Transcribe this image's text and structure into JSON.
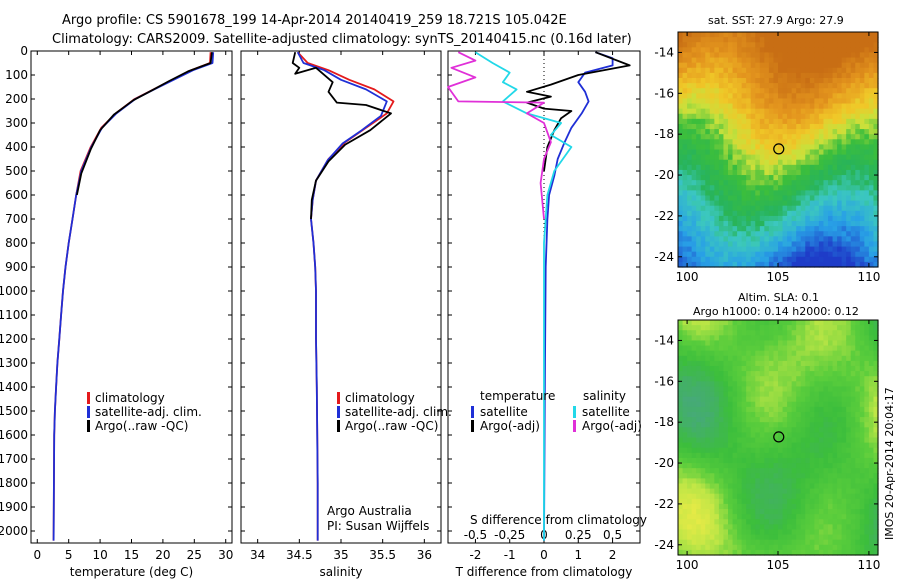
{
  "header": {
    "line1": "Argo profile: CS 5901678_199 14-Apr-2014 20140419_259 18.721S 105.042E",
    "line2": "Climatology: CARS2009. Satellite-adjusted climatology: synTS_20140415.nc (0.16d later)"
  },
  "colors": {
    "climatology": "#e41a1c",
    "satellite": "#1f2fd6",
    "argo": "#000000",
    "salinity_sat": "#22d8e8",
    "salinity_argo": "#e030d8"
  },
  "chart_data": [
    {
      "type": "line",
      "id": "temperature",
      "xlabel": "temperature (deg C)",
      "ylabel": "",
      "xlim": [
        -1,
        31
      ],
      "ylim": [
        2050,
        0
      ],
      "xticks": [
        0,
        5,
        10,
        15,
        20,
        25,
        30
      ],
      "yticks": [
        0,
        100,
        200,
        300,
        400,
        500,
        600,
        700,
        800,
        900,
        1000,
        1100,
        1200,
        1300,
        1400,
        1500,
        1600,
        1700,
        1800,
        1900,
        2000
      ],
      "legend": [
        "climatology",
        "satellite-adj. clim.",
        "Argo(..raw -QC)"
      ],
      "series": [
        {
          "name": "climatology",
          "color": "#e41a1c",
          "x": [
            27.6,
            27.5,
            24.5,
            21.5,
            18.5,
            15.5,
            12.5,
            10.2,
            8.5,
            6.9,
            6.2,
            5.6,
            5.0,
            4.5,
            4.1,
            3.8,
            3.5,
            3.2,
            3.0,
            2.8,
            2.7,
            2.6
          ],
          "y": [
            5,
            50,
            80,
            120,
            160,
            200,
            260,
            320,
            400,
            500,
            600,
            700,
            800,
            900,
            1000,
            1100,
            1200,
            1300,
            1400,
            1500,
            1600,
            2040
          ]
        },
        {
          "name": "satellite-adj. clim.",
          "color": "#1f2fd6",
          "x": [
            28.0,
            27.9,
            24.8,
            21.7,
            18.6,
            15.6,
            12.6,
            10.3,
            8.6,
            7.0,
            6.2,
            5.6,
            5.0,
            4.5,
            4.1,
            3.8,
            3.5,
            3.2,
            3.0,
            2.8,
            2.7,
            2.6
          ],
          "y": [
            5,
            50,
            80,
            120,
            160,
            200,
            260,
            320,
            400,
            500,
            600,
            700,
            800,
            900,
            1000,
            1100,
            1200,
            1300,
            1400,
            1500,
            1600,
            2040
          ]
        },
        {
          "name": "Argo(..raw -QC)",
          "color": "#000000",
          "x": [
            27.8,
            27.6,
            24.0,
            21.0,
            18.2,
            15.3,
            12.2,
            10.0,
            8.5,
            7.0,
            6.3
          ],
          "y": [
            5,
            50,
            85,
            125,
            165,
            205,
            265,
            330,
            410,
            510,
            600
          ]
        }
      ]
    },
    {
      "type": "line",
      "id": "salinity",
      "xlabel": "salinity",
      "ylabel": "",
      "xlim": [
        33.8,
        36.2
      ],
      "ylim": [
        2050,
        0
      ],
      "xticks": [
        34,
        34.5,
        35,
        35.5,
        36
      ],
      "legend": [
        "climatology",
        "satellite-adj. clim.",
        "Argo(..raw -QC)"
      ],
      "annotations": [
        "Argo Australia",
        "PI: Susan Wijffels"
      ],
      "series": [
        {
          "name": "climatology",
          "color": "#e41a1c",
          "x": [
            34.48,
            34.6,
            34.85,
            35.1,
            35.4,
            35.63,
            35.55,
            35.3,
            35.05,
            34.85,
            34.7,
            34.66,
            34.64,
            34.67,
            34.69,
            34.7,
            34.7,
            34.71,
            34.72,
            34.72
          ],
          "y": [
            5,
            50,
            80,
            120,
            160,
            210,
            260,
            320,
            380,
            450,
            540,
            620,
            700,
            800,
            900,
            1000,
            1200,
            1400,
            1800,
            2040
          ]
        },
        {
          "name": "satellite-adj. clim.",
          "color": "#1f2fd6",
          "x": [
            34.48,
            34.55,
            34.8,
            35.0,
            35.3,
            35.55,
            35.48,
            35.25,
            35.02,
            34.84,
            34.7,
            34.66,
            34.64,
            34.67,
            34.69,
            34.7,
            34.7,
            34.71,
            34.72,
            34.72
          ],
          "y": [
            5,
            50,
            80,
            120,
            160,
            210,
            270,
            330,
            385,
            455,
            540,
            620,
            700,
            800,
            900,
            1000,
            1200,
            1400,
            1800,
            2040
          ]
        },
        {
          "name": "Argo(..raw -QC)",
          "color": "#000000",
          "x": [
            34.45,
            34.42,
            34.5,
            34.45,
            34.7,
            34.9,
            34.85,
            34.95,
            35.3,
            35.6,
            35.35,
            35.05,
            34.85,
            34.7,
            34.65,
            34.64
          ],
          "y": [
            5,
            50,
            70,
            95,
            70,
            130,
            170,
            215,
            225,
            260,
            330,
            390,
            460,
            540,
            620,
            700
          ]
        }
      ]
    },
    {
      "type": "line",
      "id": "difference",
      "xlabel": "T difference from climatology",
      "xlabel_top": "S difference from climatology",
      "xlim": [
        -2.8,
        2.8
      ],
      "ylim": [
        2050,
        0
      ],
      "xticks": [
        -2,
        -1,
        0,
        1,
        2
      ],
      "xticks_s": [
        "-0.5",
        "-0.25",
        "0",
        "0.25",
        "0.5"
      ],
      "legend_titles": [
        "temperature",
        "salinity"
      ],
      "legend": [
        "satellite",
        "Argo(-adj)",
        "satellite",
        "Argo(-adj)"
      ],
      "series": [
        {
          "name": "satellite",
          "group": "temperature",
          "color": "#1f2fd6",
          "x": [
            1.5,
            2.0,
            2.0,
            1.2,
            1.0,
            1.2,
            1.3,
            1.1,
            0.8,
            0.6,
            0.4,
            0.3,
            0.15,
            0.1,
            0.05,
            0.03,
            0.0
          ],
          "y": [
            5,
            30,
            60,
            90,
            130,
            170,
            210,
            260,
            320,
            380,
            450,
            520,
            600,
            700,
            900,
            1300,
            2040
          ]
        },
        {
          "name": "Argo(-adj)",
          "group": "temperature",
          "color": "#000000",
          "x": [
            1.5,
            2.5,
            1.0,
            0.2,
            -0.5,
            0.2,
            -0.5,
            0.0,
            0.8,
            0.5,
            0.3,
            0.1,
            0.0
          ],
          "y": [
            5,
            60,
            100,
            140,
            170,
            190,
            215,
            240,
            250,
            280,
            330,
            400,
            500
          ]
        },
        {
          "name": "satellite",
          "group": "salinity",
          "color": "#22d8e8",
          "x": [
            -2.0,
            -1.5,
            -1.0,
            -1.2,
            -0.8,
            -1.2,
            -0.5,
            0.5,
            0.2,
            0.8,
            0.3,
            0.1,
            0.0,
            0.0
          ],
          "y": [
            5,
            50,
            90,
            130,
            160,
            210,
            260,
            300,
            350,
            400,
            500,
            600,
            800,
            2040
          ]
        },
        {
          "name": "Argo(-adj)",
          "group": "salinity",
          "color": "#e030d8",
          "x": [
            -2.5,
            -2.0,
            -2.7,
            -2.0,
            -2.8,
            -2.5,
            0.0,
            -0.5,
            0.0,
            0.2,
            0.0,
            -0.1,
            0.0
          ],
          "y": [
            5,
            40,
            70,
            110,
            150,
            210,
            215,
            260,
            300,
            380,
            450,
            550,
            700
          ]
        }
      ]
    },
    {
      "type": "heatmap",
      "id": "sst_map",
      "title": "sat. SST: 27.9 Argo: 27.9",
      "xlim": [
        99.5,
        110.5
      ],
      "ylim": [
        -24.5,
        -13
      ],
      "xticks": [
        100,
        105,
        110
      ],
      "yticks": [
        -14,
        -16,
        -18,
        -20,
        -22,
        -24
      ],
      "marker": [
        105.042,
        -18.721
      ]
    },
    {
      "type": "heatmap",
      "id": "sla_map",
      "title": "Altim. SLA: 0.1",
      "subtitle": "Argo h1000: 0.14 h2000: 0.12",
      "xlim": [
        99.5,
        110.5
      ],
      "ylim": [
        -24.5,
        -13
      ],
      "xticks": [
        100,
        105,
        110
      ],
      "yticks": [
        -14,
        -16,
        -18,
        -20,
        -22,
        -24
      ],
      "marker": [
        105.042,
        -18.721
      ]
    }
  ],
  "footer": {
    "stamp": "IMOS 20-Apr-2014 20:04:17"
  }
}
